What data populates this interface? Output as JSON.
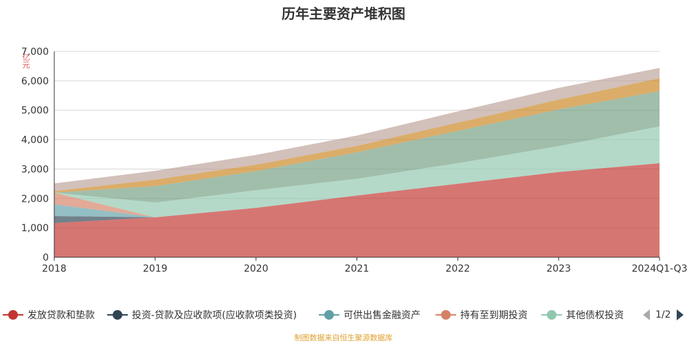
{
  "title": "历年主要资产堆积图",
  "unit": "亿元",
  "source": "制图数据来自恒生聚源数据库",
  "pager": {
    "text": "1/2"
  },
  "legend": [
    {
      "name": "发放贷款和垫款",
      "color": "#c23531"
    },
    {
      "name": "投资-贷款及应收款项(应收款项类投资)",
      "color": "#2f4554"
    },
    {
      "name": "可供出售金融资产",
      "color": "#61a0a8"
    },
    {
      "name": "持有至到期投资",
      "color": "#d48265"
    },
    {
      "name": "其他债权投资",
      "color": "#91c7ae"
    }
  ],
  "chart_data": {
    "type": "area",
    "stacked": true,
    "title": "历年主要资产堆积图",
    "ylabel": "亿元",
    "ylim": [
      0,
      7000
    ],
    "yticks": [
      0,
      1000,
      2000,
      3000,
      4000,
      5000,
      6000,
      7000
    ],
    "ytick_labels": [
      "0",
      "1,000",
      "2,000",
      "3,000",
      "4,000",
      "5,000",
      "6,000",
      "7,000"
    ],
    "grid": true,
    "categories": [
      "2018",
      "2019",
      "2020",
      "2021",
      "2022",
      "2023",
      "2024Q1-Q3"
    ],
    "series": [
      {
        "name": "发放贷款和垫款",
        "color": "#c23531",
        "values": [
          1160,
          1360,
          1680,
          2100,
          2500,
          2900,
          3200
        ]
      },
      {
        "name": "投资-贷款及应收款项(应收款项类投资)",
        "color": "#2f4554",
        "values": [
          240,
          0,
          0,
          0,
          0,
          0,
          0
        ]
      },
      {
        "name": "可供出售金融资产",
        "color": "#61a0a8",
        "values": [
          400,
          0,
          0,
          0,
          0,
          0,
          0
        ]
      },
      {
        "name": "持有至到期投资",
        "color": "#d48265",
        "values": [
          400,
          0,
          0,
          0,
          0,
          0,
          0
        ]
      },
      {
        "name": "其他债权投资",
        "color": "#91c7ae",
        "values": [
          0,
          500,
          600,
          570,
          700,
          880,
          1250
        ]
      },
      {
        "color": "#749f83",
        "values": [
          0,
          560,
          650,
          900,
          1100,
          1250,
          1200
        ]
      },
      {
        "color": "#ca8622",
        "values": [
          50,
          220,
          220,
          220,
          280,
          330,
          440
        ]
      },
      {
        "color": "#bda29a",
        "values": [
          260,
          300,
          330,
          350,
          380,
          400,
          350
        ]
      }
    ]
  }
}
